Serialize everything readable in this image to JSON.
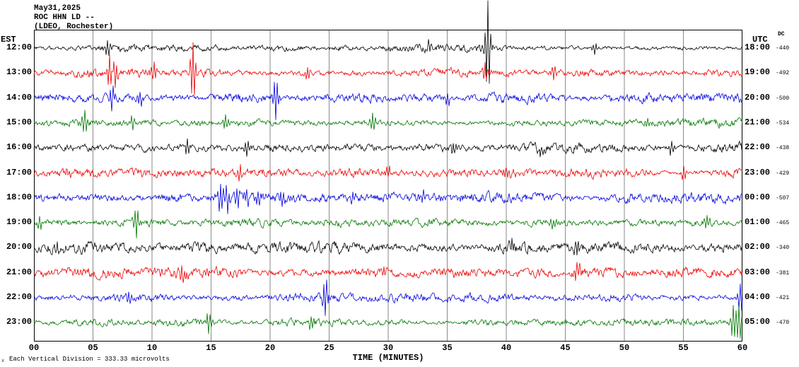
{
  "header": {
    "date": "May31,2025",
    "station": "ROC HHN LD --",
    "location": "(LDEO, Rochester)"
  },
  "footer": {
    "text": "Each Vertical Division =  333.33 microvolts",
    "marker": "x"
  },
  "chart_data": {
    "type": "line",
    "title": "ROC HHN LD -- (LDEO, Rochester) helicorder seismogram May31,2025",
    "x_label": "TIME (MINUTES)",
    "x_range_minutes": [
      0,
      60
    ],
    "x_ticks": [
      "00",
      "05",
      "10",
      "15",
      "20",
      "25",
      "30",
      "35",
      "40",
      "45",
      "50",
      "55",
      "60"
    ],
    "left_axis_label": "EST",
    "right_axis_label": "UTC",
    "dc_label": "DC",
    "grid": true,
    "grid_color": "#8a8a8a",
    "border_color": "#000000",
    "division_microvolts": 333.33,
    "colors_cycle": [
      "#000000",
      "#ee0000",
      "#0000dd",
      "#007700"
    ],
    "rows": [
      {
        "est": "12:00",
        "utc": "18:00",
        "dc": -440,
        "color": "#000000",
        "amp": 2.6,
        "spikes": [
          {
            "t": 6.2,
            "a": 10
          },
          {
            "t": 33.4,
            "a": 8
          },
          {
            "t": 38.42,
            "a": 66
          },
          {
            "t": 47.5,
            "a": -8
          }
        ]
      },
      {
        "est": "13:00",
        "utc": "19:00",
        "dc": -492,
        "color": "#ee0000",
        "amp": 3.6,
        "spikes": [
          {
            "t": 6.4,
            "a": 26
          },
          {
            "t": 6.9,
            "a": -20
          },
          {
            "t": 10.2,
            "a": 14
          },
          {
            "t": 13.45,
            "a": 45
          },
          {
            "t": 23.2,
            "a": 12
          },
          {
            "t": 38.2,
            "a": 14
          },
          {
            "t": 44.0,
            "a": -10
          }
        ]
      },
      {
        "est": "14:00",
        "utc": "20:00",
        "dc": -500,
        "color": "#0000dd",
        "amp": 3.2,
        "spikes": [
          {
            "t": 6.6,
            "a": -20
          },
          {
            "t": 9.0,
            "a": 12
          },
          {
            "t": 20.45,
            "a": -30
          },
          {
            "t": 35.0,
            "a": 10
          }
        ]
      },
      {
        "est": "15:00",
        "utc": "21:00",
        "dc": -534,
        "color": "#007700",
        "amp": 2.8,
        "spikes": [
          {
            "t": 4.3,
            "a": 16
          },
          {
            "t": 8.4,
            "a": -12
          },
          {
            "t": 16.2,
            "a": 10
          },
          {
            "t": 28.7,
            "a": 14
          },
          {
            "t": 52.0,
            "a": 9
          }
        ]
      },
      {
        "est": "16:00",
        "utc": "22:00",
        "dc": -438,
        "color": "#000000",
        "amp": 3.4,
        "spikes": [
          {
            "t": 13.0,
            "a": 10
          },
          {
            "t": 18.0,
            "a": -10
          },
          {
            "t": 35.5,
            "a": 9
          },
          {
            "t": 43.0,
            "a": 9
          },
          {
            "t": 54.0,
            "a": 12
          }
        ]
      },
      {
        "est": "17:00",
        "utc": "23:00",
        "dc": -429,
        "color": "#ee0000",
        "amp": 3.4,
        "spikes": [
          {
            "t": 3.0,
            "a": 8
          },
          {
            "t": 17.5,
            "a": 10
          },
          {
            "t": 30.0,
            "a": -9
          },
          {
            "t": 40.0,
            "a": 9
          },
          {
            "t": 55.0,
            "a": 10
          }
        ]
      },
      {
        "est": "18:00",
        "utc": "00:00",
        "dc": -507,
        "color": "#0000dd",
        "amp": 3.6,
        "spikes": [
          {
            "t": 15.8,
            "a": 22
          },
          {
            "t": 16.4,
            "a": -18
          },
          {
            "t": 17.2,
            "a": 16
          },
          {
            "t": 18.0,
            "a": 14
          },
          {
            "t": 19.0,
            "a": 12
          },
          {
            "t": 21.0,
            "a": -10
          },
          {
            "t": 27.0,
            "a": 8
          },
          {
            "t": 33.0,
            "a": 8
          }
        ]
      },
      {
        "est": "19:00",
        "utc": "01:00",
        "dc": -465,
        "color": "#007700",
        "amp": 2.8,
        "spikes": [
          {
            "t": 0.5,
            "a": 10
          },
          {
            "t": 8.7,
            "a": -20
          },
          {
            "t": 44.0,
            "a": 8
          },
          {
            "t": 57.0,
            "a": 7
          }
        ]
      },
      {
        "est": "20:00",
        "utc": "02:00",
        "dc": -340,
        "color": "#000000",
        "amp": 4.2,
        "spikes": [
          {
            "t": 2.0,
            "a": 8
          },
          {
            "t": 40.5,
            "a": 10
          },
          {
            "t": 46.0,
            "a": -12
          }
        ]
      },
      {
        "est": "21:00",
        "utc": "03:00",
        "dc": -381,
        "color": "#ee0000",
        "amp": 3.8,
        "spikes": [
          {
            "t": 12.5,
            "a": 10
          },
          {
            "t": 29.5,
            "a": -8
          },
          {
            "t": 46.0,
            "a": 14
          }
        ]
      },
      {
        "est": "22:00",
        "utc": "04:00",
        "dc": -421,
        "color": "#0000dd",
        "amp": 3.0,
        "spikes": [
          {
            "t": 8.0,
            "a": 10
          },
          {
            "t": 24.7,
            "a": -26
          },
          {
            "t": 59.8,
            "a": 22
          }
        ]
      },
      {
        "est": "23:00",
        "utc": "05:00",
        "dc": -470,
        "color": "#007700",
        "amp": 2.8,
        "spikes": [
          {
            "t": 14.8,
            "a": -14
          },
          {
            "t": 23.5,
            "a": 10
          },
          {
            "t": 59.2,
            "a": 24
          },
          {
            "t": 59.7,
            "a": 26
          }
        ]
      }
    ]
  }
}
